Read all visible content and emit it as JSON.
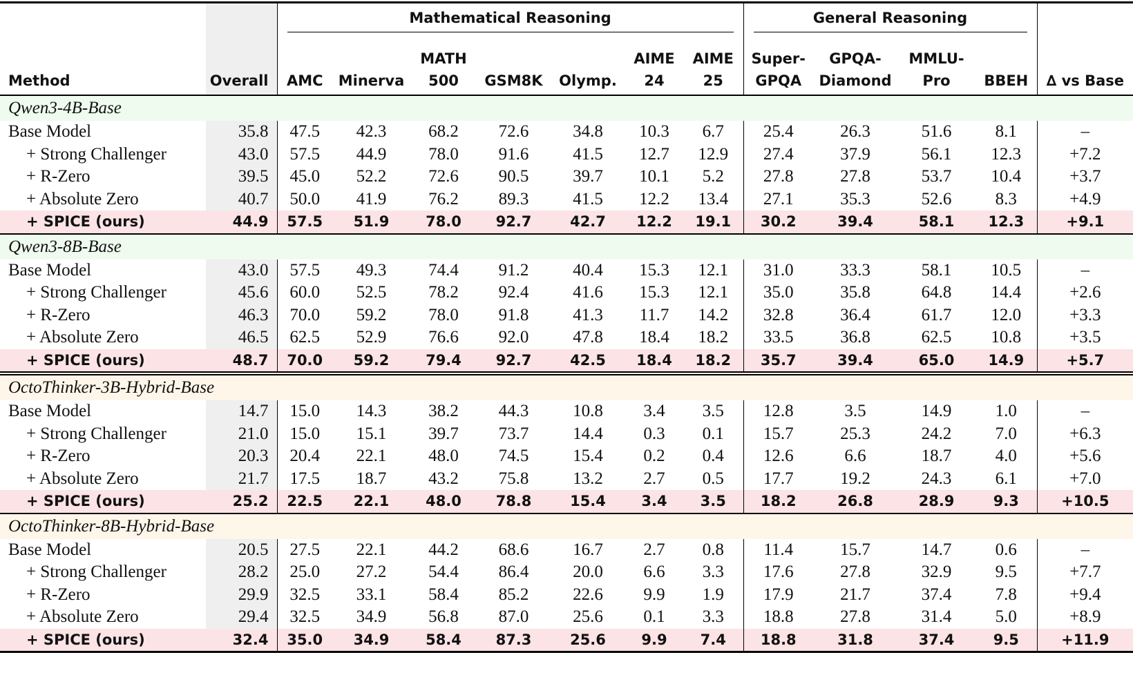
{
  "table": {
    "groups": [
      "Mathematical Reasoning",
      "General Reasoning"
    ],
    "columns": [
      [
        "Method"
      ],
      [
        "Overall"
      ],
      [
        "AMC"
      ],
      [
        "Minerva"
      ],
      [
        "MATH",
        "500"
      ],
      [
        "GSM8K"
      ],
      [
        "Olymp."
      ],
      [
        "AIME",
        "24"
      ],
      [
        "AIME",
        "25"
      ],
      [
        "Super-",
        "GPQA"
      ],
      [
        "GPQA-",
        "Diamond"
      ],
      [
        "MMLU-",
        "Pro"
      ],
      [
        "BBEH"
      ],
      [
        "∆ vs Base"
      ]
    ],
    "sections": [
      {
        "title": "Qwen3-4B-Base",
        "rows": [
          [
            "Base Model",
            "35.8",
            "47.5",
            "42.3",
            "68.2",
            "72.6",
            "34.8",
            "10.3",
            "6.7",
            "25.4",
            "26.3",
            "51.6",
            "8.1",
            "–"
          ],
          [
            "+ Strong Challenger",
            "43.0",
            "57.5",
            "44.9",
            "78.0",
            "91.6",
            "41.5",
            "12.7",
            "12.9",
            "27.4",
            "37.9",
            "56.1",
            "12.3",
            "+7.2"
          ],
          [
            "+ R-Zero",
            "39.5",
            "45.0",
            "52.2",
            "72.6",
            "90.5",
            "39.7",
            "10.1",
            "5.2",
            "27.8",
            "27.8",
            "53.7",
            "10.4",
            "+3.7"
          ],
          [
            "+ Absolute Zero",
            "40.7",
            "50.0",
            "41.9",
            "76.2",
            "89.3",
            "41.5",
            "12.2",
            "13.4",
            "27.1",
            "35.3",
            "52.6",
            "8.3",
            "+4.9"
          ],
          [
            "+ SPICE (ours)",
            "44.9",
            "57.5",
            "51.9",
            "78.0",
            "92.7",
            "42.7",
            "12.2",
            "19.1",
            "30.2",
            "39.4",
            "58.1",
            "12.3",
            "+9.1"
          ]
        ]
      },
      {
        "title": "Qwen3-8B-Base",
        "rows": [
          [
            "Base Model",
            "43.0",
            "57.5",
            "49.3",
            "74.4",
            "91.2",
            "40.4",
            "15.3",
            "12.1",
            "31.0",
            "33.3",
            "58.1",
            "10.5",
            "–"
          ],
          [
            "+ Strong Challenger",
            "45.6",
            "60.0",
            "52.5",
            "78.2",
            "92.4",
            "41.6",
            "15.3",
            "12.1",
            "35.0",
            "35.8",
            "64.8",
            "14.4",
            "+2.6"
          ],
          [
            "+ R-Zero",
            "46.3",
            "70.0",
            "59.2",
            "78.0",
            "91.8",
            "41.3",
            "11.7",
            "14.2",
            "32.8",
            "36.4",
            "61.7",
            "12.0",
            "+3.3"
          ],
          [
            "+ Absolute Zero",
            "46.5",
            "62.5",
            "52.9",
            "76.6",
            "92.0",
            "47.8",
            "18.4",
            "18.2",
            "33.5",
            "36.8",
            "62.5",
            "10.8",
            "+3.5"
          ],
          [
            "+ SPICE (ours)",
            "48.7",
            "70.0",
            "59.2",
            "79.4",
            "92.7",
            "42.5",
            "18.4",
            "18.2",
            "35.7",
            "39.4",
            "65.0",
            "14.9",
            "+5.7"
          ]
        ]
      },
      {
        "title": "OctoThinker-3B-Hybrid-Base",
        "rows": [
          [
            "Base Model",
            "14.7",
            "15.0",
            "14.3",
            "38.2",
            "44.3",
            "10.8",
            "3.4",
            "3.5",
            "12.8",
            "3.5",
            "14.9",
            "1.0",
            "–"
          ],
          [
            "+ Strong Challenger",
            "21.0",
            "15.0",
            "15.1",
            "39.7",
            "73.7",
            "14.4",
            "0.3",
            "0.1",
            "15.7",
            "25.3",
            "24.2",
            "7.0",
            "+6.3"
          ],
          [
            "+ R-Zero",
            "20.3",
            "20.4",
            "22.1",
            "48.0",
            "74.5",
            "15.4",
            "0.2",
            "0.4",
            "12.6",
            "6.6",
            "18.7",
            "4.0",
            "+5.6"
          ],
          [
            "+ Absolute Zero",
            "21.7",
            "17.5",
            "18.7",
            "43.2",
            "75.8",
            "13.2",
            "2.7",
            "0.5",
            "17.7",
            "19.2",
            "24.3",
            "6.1",
            "+7.0"
          ],
          [
            "+ SPICE (ours)",
            "25.2",
            "22.5",
            "22.1",
            "48.0",
            "78.8",
            "15.4",
            "3.4",
            "3.5",
            "18.2",
            "26.8",
            "28.9",
            "9.3",
            "+10.5"
          ]
        ]
      },
      {
        "title": "OctoThinker-8B-Hybrid-Base",
        "rows": [
          [
            "Base Model",
            "20.5",
            "27.5",
            "22.1",
            "44.2",
            "68.6",
            "16.7",
            "2.7",
            "0.8",
            "11.4",
            "15.7",
            "14.7",
            "0.6",
            "–"
          ],
          [
            "+ Strong Challenger",
            "28.2",
            "25.0",
            "27.2",
            "54.4",
            "86.4",
            "20.0",
            "6.6",
            "3.3",
            "17.6",
            "27.8",
            "32.9",
            "9.5",
            "+7.7"
          ],
          [
            "+ R-Zero",
            "29.9",
            "32.5",
            "33.1",
            "58.4",
            "85.2",
            "22.6",
            "9.9",
            "1.9",
            "17.9",
            "21.7",
            "37.4",
            "7.8",
            "+9.4"
          ],
          [
            "+ Absolute Zero",
            "29.4",
            "32.5",
            "34.9",
            "56.8",
            "87.0",
            "25.6",
            "0.1",
            "3.3",
            "18.8",
            "27.8",
            "31.4",
            "5.0",
            "+8.9"
          ],
          [
            "+ SPICE (ours)",
            "32.4",
            "35.0",
            "34.9",
            "58.4",
            "87.3",
            "25.6",
            "9.9",
            "7.4",
            "18.8",
            "31.8",
            "37.4",
            "9.5",
            "+11.9"
          ]
        ]
      }
    ]
  }
}
